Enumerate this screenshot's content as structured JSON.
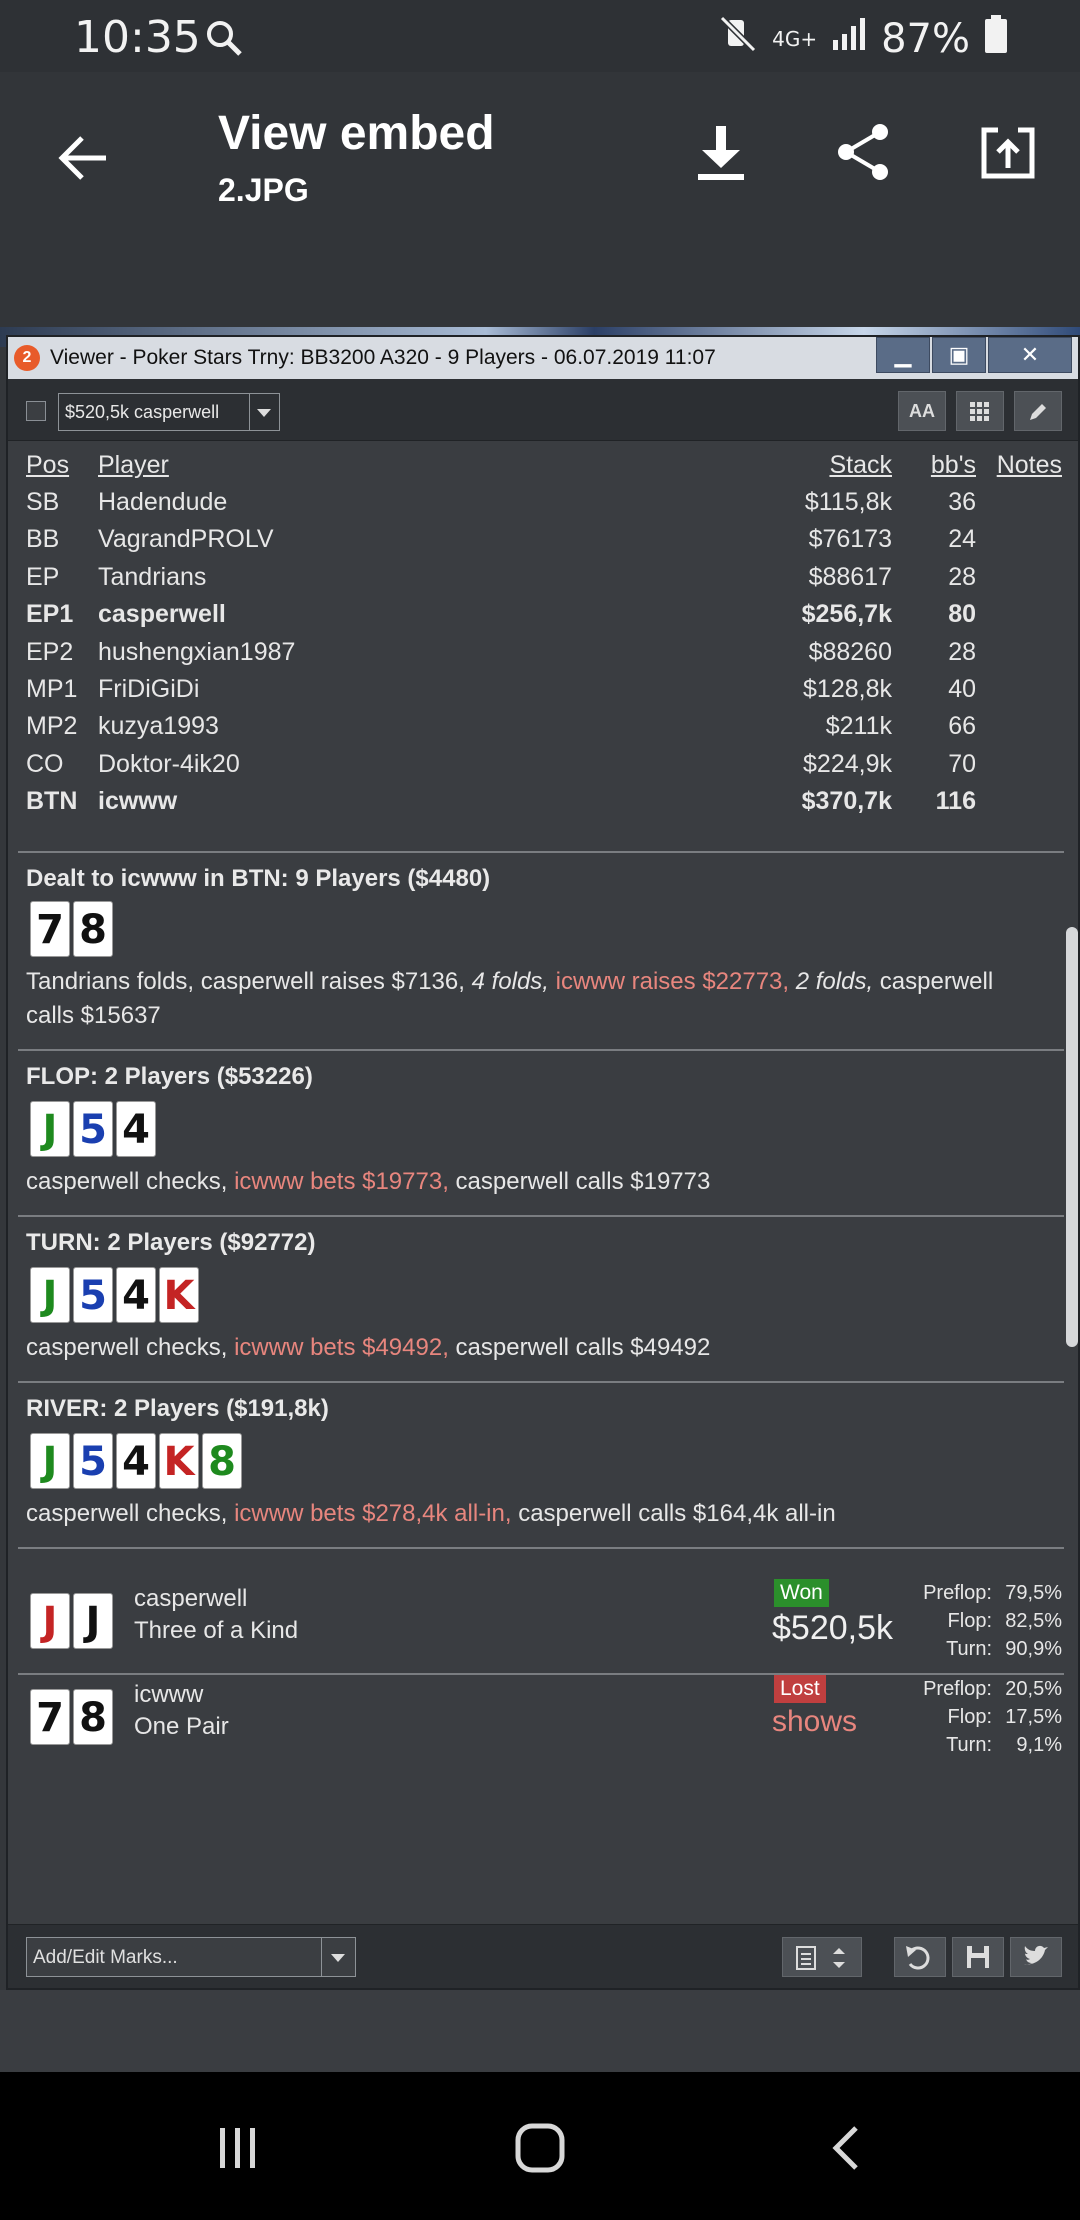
{
  "status": {
    "time": "10:35",
    "network": "4G+",
    "battery": "87%"
  },
  "appbar": {
    "title": "View embed",
    "subtitle": "2.JPG"
  },
  "window": {
    "badge": "2",
    "title": "Viewer - Poker Stars Trny: BB3200 A320 - 9 Players - 06.07.2019 11:07",
    "selector_value": "$520,5k casperwell",
    "aa_label": "AA"
  },
  "table": {
    "headers": {
      "pos": "Pos",
      "player": "Player",
      "stack": "Stack",
      "bb": "bb's",
      "notes": "Notes"
    },
    "rows": [
      {
        "pos": "SB",
        "player": "Hadendude",
        "stack": "$115,8k",
        "bb": "36"
      },
      {
        "pos": "BB",
        "player": "VagrandPROLV",
        "stack": "$76173",
        "bb": "24"
      },
      {
        "pos": "EP",
        "player": "Tandrians",
        "stack": "$88617",
        "bb": "28"
      },
      {
        "pos": "EP1",
        "player": "casperwell",
        "stack": "$256,7k",
        "bb": "80"
      },
      {
        "pos": "EP2",
        "player": "hushengxian1987",
        "stack": "$88260",
        "bb": "28"
      },
      {
        "pos": "MP1",
        "player": "FriDiGiDi",
        "stack": "$128,8k",
        "bb": "40"
      },
      {
        "pos": "MP2",
        "player": "kuzya1993",
        "stack": "$211k",
        "bb": "66"
      },
      {
        "pos": "CO",
        "player": "Doktor-4ik20",
        "stack": "$224,9k",
        "bb": "70"
      },
      {
        "pos": "BTN",
        "player": "icwww",
        "stack": "$370,7k",
        "bb": "116"
      }
    ]
  },
  "preflop": {
    "title": "Dealt to icwww in BTN: 9 Players ($4480)",
    "cards": [
      "7",
      "8"
    ],
    "a1": "Tandrians folds, casperwell raises $7136, ",
    "a2": "4 folds,",
    "a3": " icwww raises $22773,",
    "a4": " ",
    "a5": "2 folds,",
    "a6": " casperwell calls $15637"
  },
  "flop": {
    "title": "FLOP: 2 Players ($53226)",
    "cards": [
      "J",
      "5",
      "4"
    ],
    "a1": "casperwell checks, ",
    "a2": "icwww bets $19773,",
    "a3": " casperwell calls $19773"
  },
  "turn": {
    "title": "TURN: 2 Players ($92772)",
    "cards": [
      "J",
      "5",
      "4",
      "K"
    ],
    "a1": "casperwell checks, ",
    "a2": "icwww bets $49492,",
    "a3": " casperwell calls $49492"
  },
  "river": {
    "title": "RIVER: 2 Players ($191,8k)",
    "cards": [
      "J",
      "5",
      "4",
      "K",
      "8"
    ],
    "a1": "casperwell checks, ",
    "a2": "icwww bets $278,4k all-in,",
    "a3": " casperwell calls $164,4k all-in"
  },
  "results": [
    {
      "cards": [
        "J",
        "J"
      ],
      "player": "casperwell",
      "hand": "Three of a Kind",
      "badge": "Won",
      "amount": "$520,5k",
      "eq": [
        {
          "l": "Preflop:",
          "v": "79,5%"
        },
        {
          "l": "Flop:",
          "v": "82,5%"
        },
        {
          "l": "Turn:",
          "v": "90,9%"
        }
      ]
    },
    {
      "cards": [
        "7",
        "8"
      ],
      "player": "icwww",
      "hand": "One Pair",
      "badge": "Lost",
      "amount": "shows",
      "eq": [
        {
          "l": "Preflop:",
          "v": "20,5%"
        },
        {
          "l": "Flop:",
          "v": "17,5%"
        },
        {
          "l": "Turn:",
          "v": "9,1%"
        }
      ]
    }
  ],
  "bottom": {
    "marks_placeholder": "Add/Edit Marks..."
  },
  "colors": {
    "spade": "#111111",
    "club": "#1e8a1e",
    "diamond": "#1a3fb0",
    "heart": "#c42424",
    "won": "#2b8f2b",
    "lost": "#c03f3f",
    "action_red": "#e8867e"
  }
}
